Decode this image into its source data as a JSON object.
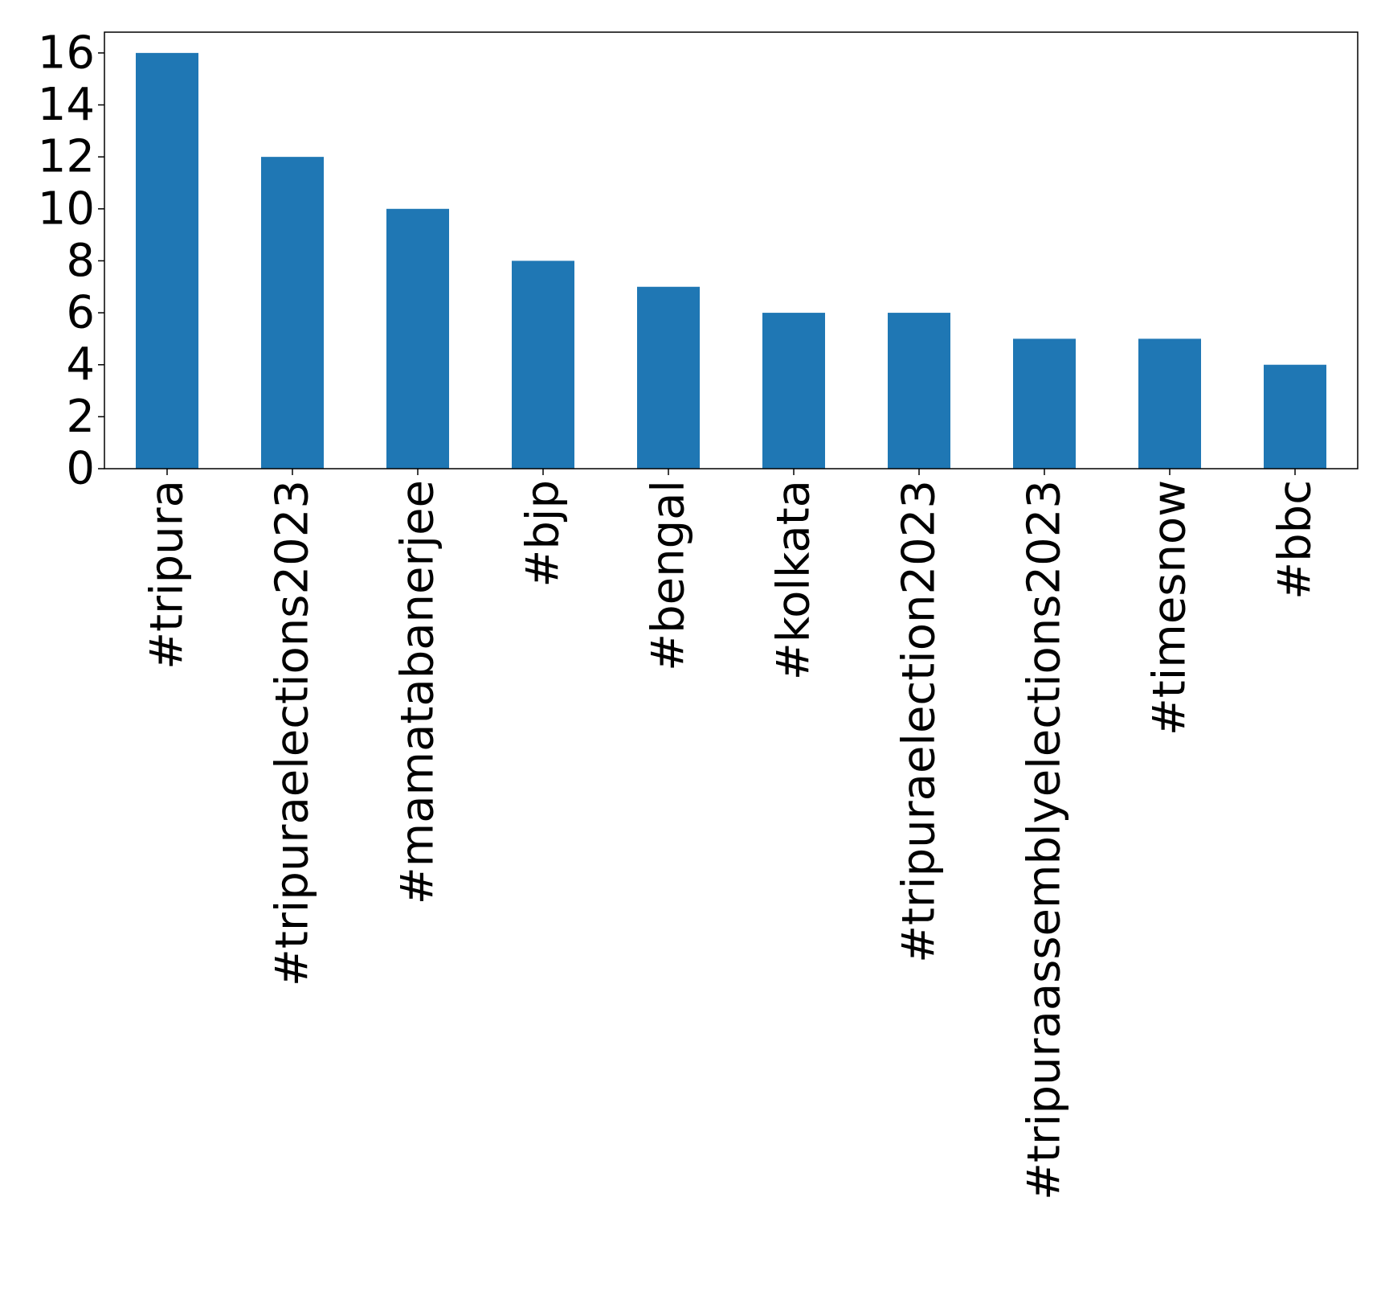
{
  "chart_data": {
    "type": "bar",
    "title": "",
    "xlabel": "",
    "ylabel": "",
    "categories": [
      "#tripura",
      "#tripuraelections2023",
      "#mamatabanerjee",
      "#bjp",
      "#bengal",
      "#kolkata",
      "#tripuraelection2023",
      "#tripuraassemblyelections2023",
      "#timesnow",
      "#bbc"
    ],
    "values": [
      16,
      12,
      10,
      8,
      7,
      6,
      6,
      5,
      5,
      4
    ],
    "ylim": [
      0,
      16.8
    ],
    "yticks": [
      0,
      2,
      4,
      6,
      8,
      10,
      12,
      14,
      16
    ],
    "grid": false,
    "legend": "none",
    "bar_color": "#1f77b4"
  }
}
